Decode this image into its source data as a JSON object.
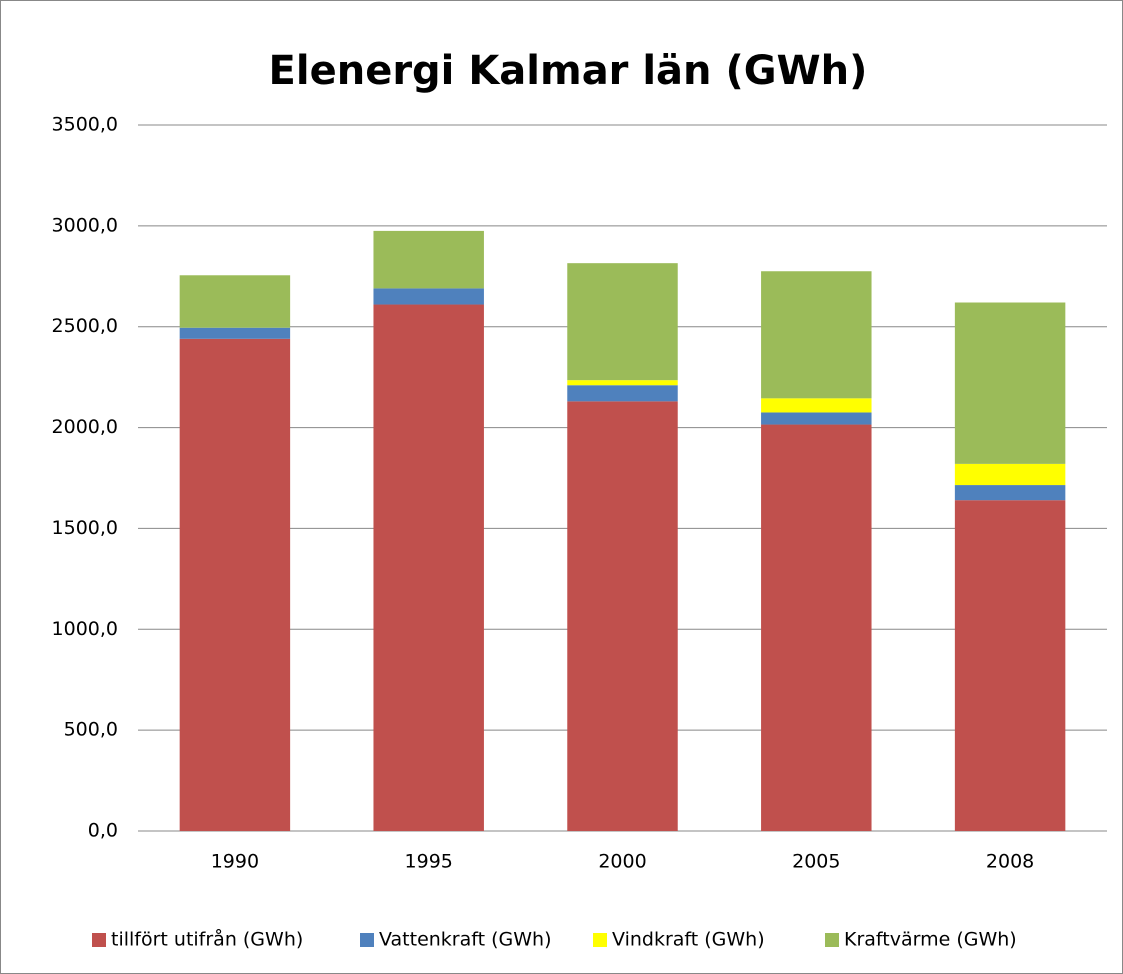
{
  "chart_data": {
    "type": "stacked_bar",
    "title": "Elenergi Kalmar län (GWh)",
    "categories": [
      "1990",
      "1995",
      "2000",
      "2005",
      "2008"
    ],
    "series": [
      {
        "name": "tillfört utifrån (GWh)",
        "color": "#c0504d",
        "values": [
          2440,
          2610,
          2130,
          2015,
          1640
        ]
      },
      {
        "name": "Vattenkraft (GWh)",
        "color": "#4f81bd",
        "values": [
          55,
          80,
          80,
          60,
          75
        ]
      },
      {
        "name": "Vindkraft (GWh)",
        "color": "#ffff00",
        "values": [
          0,
          0,
          25,
          70,
          105
        ]
      },
      {
        "name": "Kraftvärme (GWh)",
        "color": "#9bbb59",
        "values": [
          260,
          285,
          580,
          630,
          800
        ]
      }
    ],
    "ylim": [
      0,
      3500
    ],
    "yticks": [
      {
        "value": 0,
        "label": "0,0"
      },
      {
        "value": 500,
        "label": "500,0"
      },
      {
        "value": 1000,
        "label": "1000,0"
      },
      {
        "value": 1500,
        "label": "1500,0"
      },
      {
        "value": 2000,
        "label": "2000,0"
      },
      {
        "value": 2500,
        "label": "2500,0"
      },
      {
        "value": 3000,
        "label": "3000,0"
      },
      {
        "value": 3500,
        "label": "3500,0"
      }
    ],
    "grid": true,
    "legend": "bottom"
  }
}
